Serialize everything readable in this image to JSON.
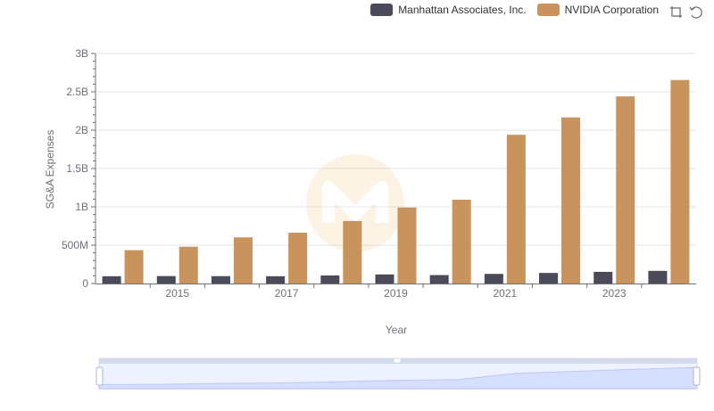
{
  "legend": {
    "series1": "Manhattan Associates, Inc.",
    "series2": "NVIDIA Corporation"
  },
  "toolbox": {
    "zoom_icon": "zoom-icon",
    "restore_icon": "restore-icon"
  },
  "colors": {
    "manh": "#4a4a58",
    "nvda": "#c8935d",
    "grid": "#e6e6e6",
    "slider": "#d6e0ff"
  },
  "chart_data": {
    "type": "bar",
    "title": "",
    "xlabel": "Year",
    "ylabel": "SG&A Expenses",
    "ylim": [
      0,
      3000000000
    ],
    "yticks": [
      "0",
      "500M",
      "1B",
      "1.5B",
      "2B",
      "2.5B",
      "3B"
    ],
    "x": [
      2014,
      2015,
      2016,
      2017,
      2018,
      2019,
      2020,
      2021,
      2022,
      2023,
      2024
    ],
    "xtick_labels": [
      "2015",
      "2017",
      "2019",
      "2021",
      "2023"
    ],
    "series": [
      {
        "name": "Manhattan Associates, Inc.",
        "values": [
          95000000,
          97000000,
          96000000,
          95000000,
          105000000,
          118000000,
          110000000,
          125000000,
          138000000,
          152000000,
          165000000
        ]
      },
      {
        "name": "NVIDIA Corporation",
        "values": [
          435000000,
          480000000,
          602000000,
          663000000,
          815000000,
          991000000,
          1093000000,
          1940000000,
          2166000000,
          2440000000,
          2654000000
        ]
      }
    ]
  }
}
